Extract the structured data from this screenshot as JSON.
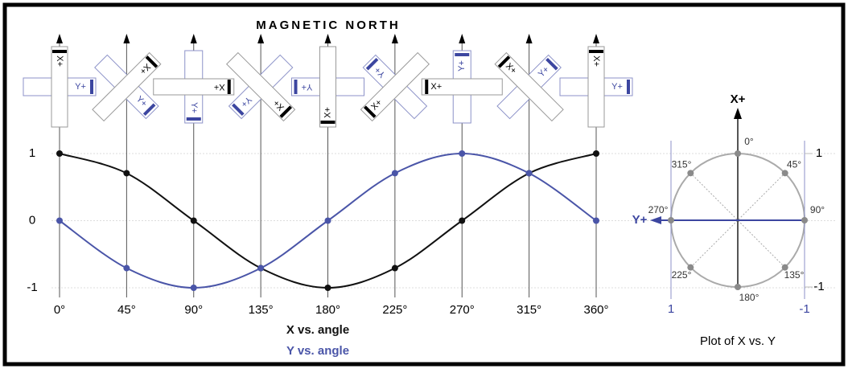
{
  "header": {
    "title": "MAGNETIC NORTH"
  },
  "sensors": {
    "x_label": "X+",
    "y_label": "Y+"
  },
  "chart_data": [
    {
      "type": "line",
      "x": [
        0,
        45,
        90,
        135,
        180,
        225,
        270,
        315,
        360
      ],
      "xlim": [
        0,
        360
      ],
      "xticks": [
        {
          "value": 0,
          "label": "0°"
        },
        {
          "value": 45,
          "label": "45°"
        },
        {
          "value": 90,
          "label": "90°"
        },
        {
          "value": 135,
          "label": "135°"
        },
        {
          "value": 180,
          "label": "180°"
        },
        {
          "value": 225,
          "label": "225°"
        },
        {
          "value": 270,
          "label": "270°"
        },
        {
          "value": 315,
          "label": "315°"
        },
        {
          "value": 360,
          "label": "360°"
        }
      ],
      "ylim": [
        -1,
        1
      ],
      "yticks": [
        1,
        0,
        -1
      ],
      "grid": true,
      "series": [
        {
          "name": "X vs. angle",
          "color": "#111111",
          "values": [
            1,
            0.707,
            0,
            -0.707,
            -1,
            -0.707,
            0,
            0.707,
            1
          ]
        },
        {
          "name": "Y vs. angle",
          "color": "#4a55a8",
          "values": [
            0,
            -0.707,
            -1,
            -0.707,
            0,
            0.707,
            1,
            0.707,
            0
          ]
        }
      ]
    },
    {
      "type": "scatter",
      "title": "Plot of X vs. Y",
      "x_label": "Y+",
      "y_label": "X+",
      "xlim": [
        1,
        -1
      ],
      "xticks": [
        1,
        -1
      ],
      "ylim": [
        -1,
        1
      ],
      "yticks": [
        1,
        -1
      ],
      "point_labels": [
        "0°",
        "45°",
        "90°",
        "135°",
        "180°",
        "225°",
        "270°",
        "315°"
      ],
      "x": [
        0,
        -0.707,
        -1,
        -0.707,
        0,
        0.707,
        1,
        0.707
      ],
      "values": [
        1,
        0.707,
        0,
        -0.707,
        -1,
        -0.707,
        0,
        0.707
      ],
      "color": "#8a8a8a"
    }
  ]
}
